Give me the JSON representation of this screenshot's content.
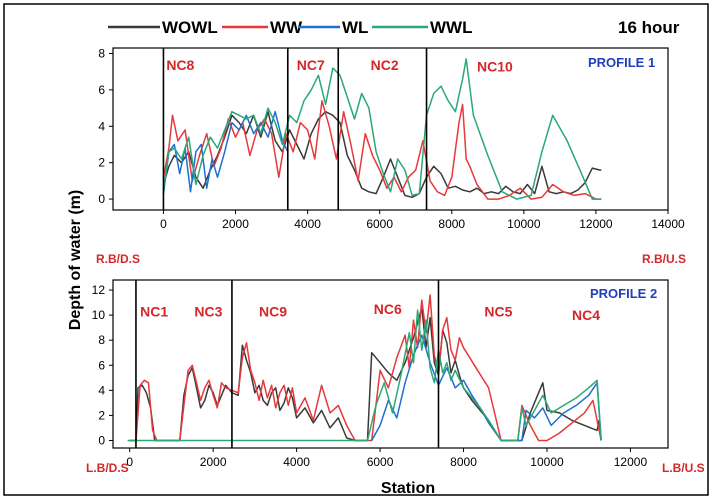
{
  "chart_data": {
    "type": "line",
    "time_label": "16 hour",
    "ylabel": "Depth of water (m)",
    "xlabel": "Station",
    "legend": [
      {
        "name": "WOWL",
        "color": "#3a3a3a"
      },
      {
        "name": "WW",
        "color": "#e8383b"
      },
      {
        "name": "WL",
        "color": "#1f6fd1"
      },
      {
        "name": "WWL",
        "color": "#2aa876"
      }
    ],
    "panels": [
      {
        "profile": "PROFILE 1",
        "left_label": "R.B/D.S",
        "right_label": "R.B/U.S",
        "xlim": [
          -1400,
          14000
        ],
        "ylim": [
          -0.6,
          8.3
        ],
        "xticks": [
          0,
          2000,
          4000,
          6000,
          8000,
          10000,
          12000,
          14000
        ],
        "yticks": [
          0,
          2,
          4,
          6,
          8
        ],
        "dividers": [
          0,
          3450,
          4850,
          7300
        ],
        "zones": [
          {
            "label": "NC8",
            "x": 80,
            "y": 7.1
          },
          {
            "label": "NC7",
            "x": 3700,
            "y": 7.1
          },
          {
            "label": "NC2",
            "x": 5750,
            "y": 7.1
          },
          {
            "label": "NC10",
            "x": 8700,
            "y": 7.0
          }
        ],
        "series": [
          {
            "name": "WOWL",
            "color": "#3a3a3a",
            "x": [
              0,
              150,
              300,
              500,
              700,
              900,
              1100,
              1300,
              1500,
              1700,
              1900,
              2100,
              2300,
              2500,
              2700,
              2900,
              3100,
              3300,
              3500,
              3700,
              3900,
              4100,
              4300,
              4500,
              4700,
              4900,
              5100,
              5300,
              5500,
              5700,
              5900,
              6100,
              6300,
              6500,
              6700,
              6900,
              7100,
              7300,
              7500,
              7700,
              7900,
              8100,
              8300,
              8500,
              8700,
              8900,
              9100,
              9300,
              9500,
              9700,
              9900,
              10100,
              10300,
              10500,
              10700,
              10900,
              11100,
              11300,
              11500,
              11700,
              11900,
              12100,
              12150
            ],
            "y": [
              0.8,
              1.8,
              2.4,
              2.0,
              2.6,
              1.2,
              0.6,
              1.6,
              2.4,
              3.4,
              4.6,
              4.2,
              3.6,
              4.6,
              3.4,
              4.8,
              3.2,
              2.6,
              3.8,
              3.0,
              2.2,
              3.6,
              4.4,
              4.8,
              4.6,
              4.2,
              2.4,
              1.6,
              0.6,
              0.4,
              0.3,
              1.2,
              2.2,
              1.2,
              0.2,
              0.1,
              0.3,
              1.2,
              1.8,
              1.4,
              0.6,
              0.7,
              0.5,
              0.4,
              0.6,
              0.3,
              0.4,
              0.3,
              0.7,
              0.4,
              0.3,
              0.8,
              0.3,
              1.8,
              0.4,
              0.3,
              0.4,
              0.3,
              0.5,
              0.9,
              1.7,
              1.6,
              1.6
            ]
          },
          {
            "name": "WW",
            "color": "#e8383b",
            "x": [
              0,
              150,
              250,
              400,
              600,
              800,
              1000,
              1200,
              1400,
              1600,
              1800,
              2000,
              2200,
              2400,
              2600,
              2800,
              3000,
              3200,
              3400,
              3600,
              3800,
              4000,
              4200,
              4400,
              4600,
              4800,
              5000,
              5200,
              5400,
              5600,
              5800,
              6000,
              6200,
              6400,
              6600,
              6800,
              7000,
              7200,
              7400,
              7600,
              7800,
              8000,
              8200,
              8300,
              8400,
              8500,
              8700,
              9000,
              9300,
              9600,
              9900,
              10200,
              10500,
              10800,
              11100,
              11400,
              11700,
              12000,
              12150
            ],
            "y": [
              1.2,
              2.8,
              4.6,
              3.2,
              3.8,
              1.0,
              2.4,
              3.6,
              1.8,
              2.8,
              4.4,
              3.4,
              4.2,
              2.4,
              3.8,
              4.4,
              3.6,
              1.2,
              3.6,
              2.6,
              4.2,
              3.8,
              2.2,
              5.4,
              4.0,
              2.2,
              4.8,
              3.0,
              1.0,
              3.6,
              2.4,
              1.6,
              0.6,
              1.2,
              0.4,
              1.2,
              1.6,
              3.2,
              1.0,
              0.4,
              0.2,
              1.2,
              4.2,
              5.2,
              2.2,
              1.8,
              0.8,
              0.0,
              0.0,
              0.2,
              0.6,
              0.0,
              0.1,
              0.8,
              0.4,
              0.2,
              0.3,
              0.0,
              0.0
            ]
          },
          {
            "name": "WL",
            "color": "#1f6fd1",
            "x": [
              0,
              150,
              300,
              450,
              600,
              750,
              900,
              1050,
              1200,
              1350,
              1500,
              1700,
              1900,
              2100,
              2300,
              2500,
              2700,
              2900,
              3100,
              3300,
              3450
            ],
            "y": [
              0.3,
              2.6,
              3.0,
              1.4,
              2.8,
              0.4,
              2.6,
              3.0,
              0.6,
              2.2,
              1.2,
              2.6,
              4.2,
              3.8,
              4.6,
              3.6,
              4.2,
              3.4,
              4.8,
              3.2,
              2.6
            ]
          },
          {
            "name": "WWL",
            "color": "#2aa876",
            "x": [
              0,
              150,
              300,
              500,
              700,
              900,
              1100,
              1300,
              1500,
              1700,
              1900,
              2100,
              2300,
              2500,
              2700,
              2900,
              3100,
              3300,
              3500,
              3700,
              3900,
              4100,
              4300,
              4500,
              4700,
              4900,
              5100,
              5300,
              5500,
              5700,
              5900,
              6100,
              6300,
              6500,
              6700,
              6900,
              7100,
              7300,
              7500,
              7700,
              7900,
              8100,
              8300,
              8400,
              8600,
              9000,
              9400,
              9800,
              10200,
              10500,
              10800,
              11200,
              11600,
              11900,
              12150
            ],
            "y": [
              0.5,
              2.6,
              2.8,
              2.2,
              3.4,
              0.8,
              2.4,
              3.4,
              2.8,
              3.8,
              4.8,
              4.6,
              4.4,
              4.6,
              3.6,
              5.0,
              4.2,
              3.0,
              4.6,
              4.2,
              5.4,
              6.0,
              6.8,
              5.2,
              7.2,
              6.8,
              5.6,
              4.4,
              5.8,
              5.0,
              2.6,
              1.4,
              0.4,
              2.2,
              1.6,
              0.2,
              0.3,
              4.6,
              5.8,
              6.2,
              5.4,
              4.8,
              6.6,
              7.7,
              4.6,
              2.4,
              0.4,
              0.0,
              0.2,
              2.6,
              4.6,
              3.2,
              1.4,
              0.0,
              0.0
            ]
          }
        ]
      },
      {
        "profile": "PROFILE 2",
        "left_label": "L.B/D.S",
        "right_label": "L.B/U.S",
        "xlim": [
          -400,
          12900
        ],
        "ylim": [
          -0.6,
          12.8
        ],
        "xticks": [
          0,
          2000,
          4000,
          6000,
          8000,
          10000,
          12000
        ],
        "yticks": [
          0,
          2,
          4,
          6,
          8,
          10,
          12
        ],
        "dividers": [
          150,
          2450,
          7400
        ],
        "zones": [
          {
            "label": "NC1",
            "x": 250,
            "y": 9.9
          },
          {
            "label": "NC3",
            "x": 1550,
            "y": 9.9
          },
          {
            "label": "NC9",
            "x": 3100,
            "y": 9.9
          },
          {
            "label": "NC6",
            "x": 5850,
            "y": 10.1
          },
          {
            "label": "NC5",
            "x": 8500,
            "y": 9.9
          },
          {
            "label": "NC4",
            "x": 10600,
            "y": 9.6
          }
        ],
        "series": [
          {
            "name": "WOWL",
            "color": "#3a3a3a",
            "x": [
              0,
              150,
              200,
              300,
              400,
              500,
              600,
              1200,
              1300,
              1400,
              1500,
              1600,
              1700,
              1800,
              1900,
              2000,
              2100,
              2200,
              2300,
              2450,
              2600,
              2700,
              2800,
              2900,
              3000,
              3100,
              3200,
              3300,
              3400,
              3500,
              3600,
              3700,
              3800,
              3900,
              4000,
              4200,
              4400,
              4600,
              4800,
              5000,
              5200,
              5400,
              5700,
              5800,
              6000,
              6200,
              6400,
              6600,
              6800,
              7000,
              7100,
              7200,
              7300,
              7400,
              7500,
              7600,
              7700,
              7800,
              7900,
              8000,
              8200,
              8600,
              8900,
              9400,
              9600,
              9800,
              9900,
              10000,
              10300,
              10600,
              10900,
              11200,
              11250,
              11300
            ],
            "y": [
              0.0,
              0.0,
              4.2,
              4.4,
              3.8,
              2.6,
              0.0,
              0.0,
              3.6,
              5.2,
              5.8,
              4.2,
              2.6,
              3.2,
              4.4,
              3.8,
              2.8,
              3.6,
              4.4,
              3.8,
              3.6,
              7.6,
              6.4,
              5.4,
              3.8,
              4.4,
              3.2,
              2.8,
              3.8,
              4.2,
              2.4,
              3.0,
              4.2,
              3.4,
              1.8,
              2.6,
              1.4,
              2.4,
              1.0,
              1.8,
              0.2,
              0.0,
              0.0,
              7.0,
              6.2,
              5.4,
              4.8,
              6.2,
              8.2,
              10.6,
              7.4,
              9.8,
              6.2,
              5.2,
              8.8,
              7.8,
              5.4,
              6.4,
              5.2,
              4.2,
              3.2,
              1.6,
              0.0,
              0.0,
              2.2,
              3.8,
              4.6,
              2.4,
              2.2,
              1.6,
              1.2,
              0.8,
              1.6,
              0.0
            ]
          },
          {
            "name": "WW",
            "color": "#e8383b",
            "x": [
              0,
              150,
              250,
              350,
              450,
              550,
              650,
              1200,
              1300,
              1400,
              1500,
              1600,
              1700,
              1800,
              1900,
              2000,
              2100,
              2200,
              2300,
              2450,
              2600,
              2700,
              2800,
              2900,
              3000,
              3100,
              3200,
              3300,
              3400,
              3500,
              3600,
              3700,
              3800,
              3900,
              4000,
              4200,
              4400,
              4600,
              4800,
              5000,
              5200,
              5400,
              5800,
              6000,
              6200,
              6400,
              6600,
              6700,
              6800,
              6900,
              7000,
              7100,
              7200,
              7300,
              7400,
              7500,
              7600,
              7700,
              7800,
              7900,
              8000,
              8300,
              8600,
              8900,
              9300,
              9400,
              9600,
              9800,
              10000,
              10300,
              10600,
              10900,
              11100,
              11200,
              11300
            ],
            "y": [
              0.0,
              0.0,
              4.4,
              4.8,
              4.6,
              0.8,
              0.0,
              0.0,
              2.8,
              5.6,
              6.0,
              4.6,
              3.2,
              4.2,
              4.8,
              3.6,
              2.6,
              4.6,
              4.2,
              4.0,
              3.8,
              6.6,
              7.8,
              5.6,
              4.6,
              3.2,
              4.8,
              3.4,
              4.4,
              2.6,
              3.8,
              4.4,
              2.8,
              4.2,
              2.2,
              3.4,
              1.6,
              4.4,
              2.2,
              2.8,
              1.2,
              0.0,
              0.0,
              5.6,
              4.2,
              6.6,
              8.4,
              5.8,
              9.6,
              7.4,
              11.2,
              8.6,
              11.6,
              6.8,
              5.4,
              8.8,
              9.8,
              7.2,
              6.4,
              8.2,
              7.4,
              5.8,
              4.2,
              0.0,
              0.0,
              2.8,
              1.2,
              0.0,
              0.0,
              0.6,
              1.4,
              2.2,
              3.2,
              1.6,
              0.0
            ]
          },
          {
            "name": "WL",
            "color": "#1f6fd1",
            "x": [
              5800,
              6000,
              6200,
              6400,
              6600,
              6800,
              7000,
              7200,
              7400,
              7600,
              7800,
              8000,
              8200,
              8400,
              8600,
              8900,
              9400,
              9500,
              9700,
              9900,
              10100,
              10400,
              10700,
              11000,
              11200,
              11300
            ],
            "y": [
              0.0,
              1.2,
              3.2,
              1.8,
              4.6,
              6.8,
              8.4,
              6.2,
              4.4,
              5.8,
              4.2,
              4.8,
              3.6,
              2.6,
              1.4,
              0.0,
              0.0,
              2.4,
              1.8,
              2.6,
              1.2,
              2.2,
              2.8,
              3.6,
              4.6,
              0.0
            ]
          },
          {
            "name": "WWL",
            "color": "#2aa876",
            "x": [
              -50,
              600,
              1200,
              2450,
              3500,
              4500,
              5200,
              5700,
              5900,
              6100,
              6300,
              6500,
              6700,
              6800,
              6900,
              7000,
              7100,
              7200,
              7300,
              7400,
              7500,
              7600,
              7700,
              7800,
              8000,
              8200,
              8400,
              8600,
              8900,
              9300,
              9400,
              9500,
              9700,
              9900,
              10100,
              10400,
              10700,
              11000,
              11200,
              11300
            ],
            "y": [
              0.0,
              0.0,
              0.0,
              0.0,
              0.0,
              0.0,
              0.0,
              0.0,
              2.8,
              4.6,
              2.2,
              5.2,
              8.6,
              6.2,
              10.4,
              7.2,
              9.6,
              5.8,
              4.6,
              7.2,
              5.4,
              6.2,
              4.8,
              5.6,
              4.2,
              3.4,
              2.6,
              1.6,
              0.0,
              0.0,
              2.6,
              1.2,
              2.4,
              3.6,
              2.2,
              2.8,
              3.4,
              4.2,
              4.8,
              0.0
            ]
          }
        ]
      }
    ]
  }
}
